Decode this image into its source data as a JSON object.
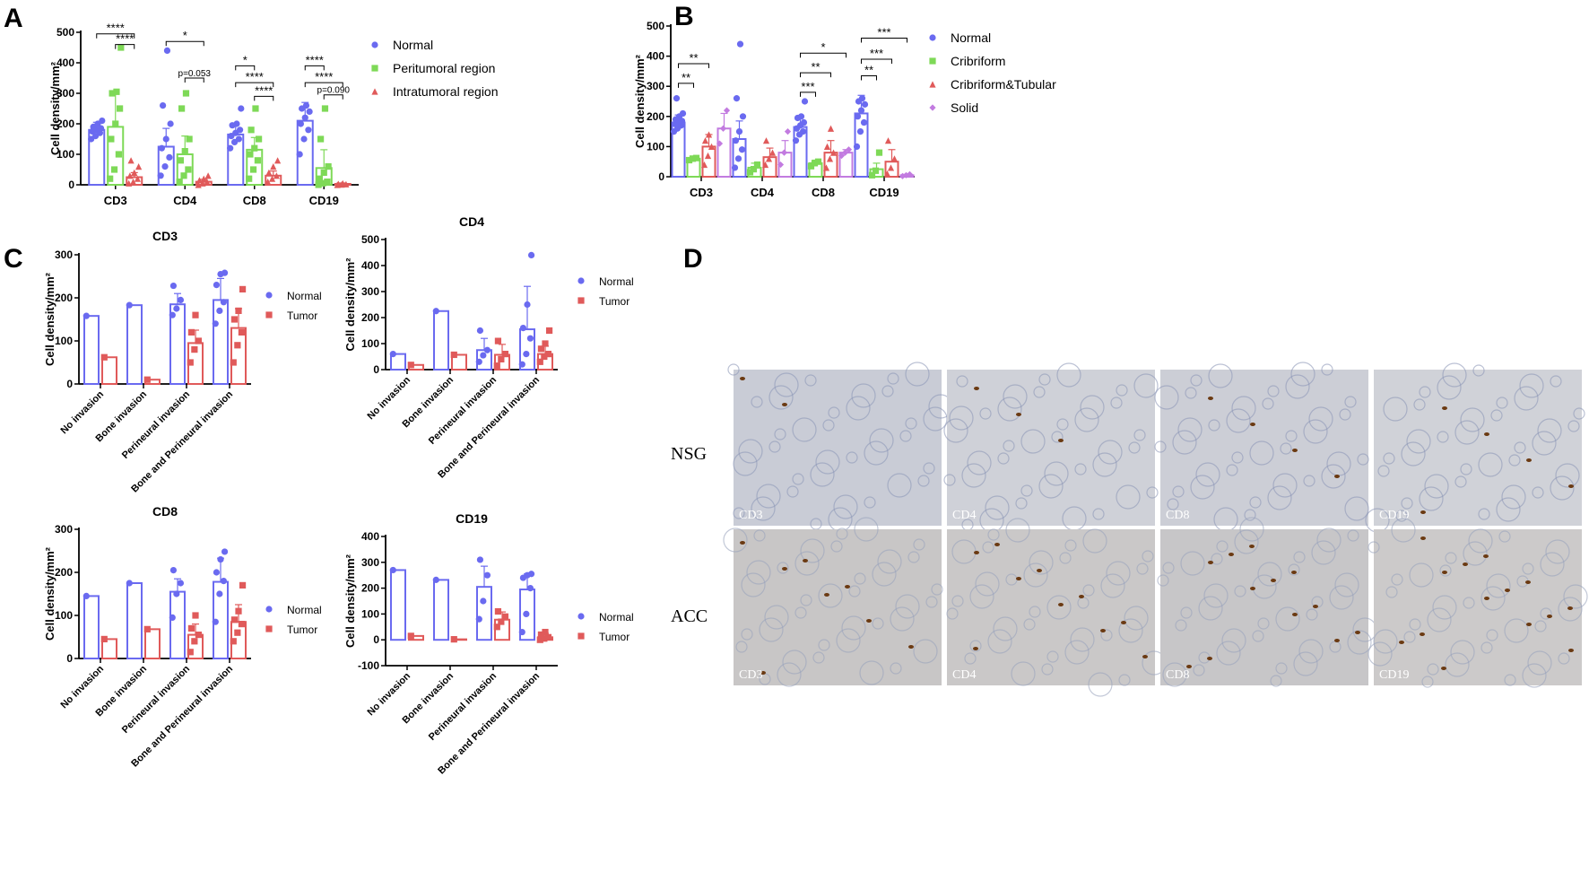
{
  "figure": {
    "panel_letters": {
      "A": "A",
      "B": "B",
      "C": "C",
      "D": "D"
    },
    "colors": {
      "Normal": "#6a6af0",
      "Tumor": "#e05a5a",
      "Peritumoral": "#7ed957",
      "Intratumoral": "#e05a5a",
      "Cribriform": "#7ed957",
      "CribriformTubular": "#e05a5a",
      "Solid": "#c27be0"
    },
    "panel_D": {
      "row_labels": [
        "NSG",
        "ACC"
      ],
      "tile_labels": [
        "CD3",
        "CD4",
        "CD8",
        "CD19"
      ],
      "image_bg": [
        "#c9ccd6",
        "#cfd1d8",
        "#ccced6",
        "#d0d2d8"
      ],
      "image_bg_acc": [
        "#c8c6c6",
        "#cac8c8",
        "#c7c6c8",
        "#cccaca"
      ]
    }
  },
  "chart_data": [
    {
      "id": "A",
      "type": "bar",
      "title": "",
      "ylabel": "Cell density/mm²",
      "ylim": [
        0,
        500
      ],
      "yticks": [
        0,
        100,
        200,
        300,
        400,
        500
      ],
      "categories": [
        "CD3",
        "CD4",
        "CD8",
        "CD19"
      ],
      "legend_position": "right",
      "series": [
        {
          "name": "Normal",
          "color": "#6a6af0",
          "marker": "circle",
          "values": [
            180,
            125,
            165,
            210
          ],
          "errors": [
            25,
            60,
            30,
            60
          ],
          "points": [
            [
              150,
              160,
              170,
              175,
              180,
              185,
              190,
              200,
              210
            ],
            [
              30,
              60,
              90,
              120,
              150,
              200,
              260,
              440
            ],
            [
              120,
              140,
              150,
              160,
              170,
              180,
              195,
              200,
              250
            ],
            [
              100,
              150,
              180,
              200,
              220,
              240,
              250,
              260
            ]
          ]
        },
        {
          "name": "Peritumoral region",
          "color": "#7ed957",
          "marker": "square",
          "values": [
            190,
            100,
            115,
            55
          ],
          "errors": [
            110,
            60,
            40,
            60
          ],
          "points": [
            [
              20,
              50,
              100,
              150,
              200,
              250,
              300,
              305,
              450
            ],
            [
              10,
              30,
              50,
              80,
              110,
              150,
              250,
              300
            ],
            [
              20,
              50,
              80,
              100,
              120,
              150,
              180,
              250
            ],
            [
              0,
              5,
              10,
              20,
              40,
              60,
              150,
              250
            ]
          ]
        },
        {
          "name": "Intratumoral region",
          "color": "#e05a5a",
          "marker": "triangle",
          "values": [
            25,
            10,
            30,
            3
          ],
          "errors": [
            15,
            8,
            15,
            3
          ],
          "points": [
            [
              5,
              10,
              20,
              30,
              40,
              60,
              80
            ],
            [
              0,
              5,
              10,
              15,
              20,
              30
            ],
            [
              10,
              20,
              30,
              40,
              60,
              80
            ],
            [
              0,
              1,
              2,
              3,
              5
            ]
          ]
        }
      ],
      "significance": [
        {
          "cat": 0,
          "from": 0,
          "to": 2,
          "y": 495,
          "label": "****"
        },
        {
          "cat": 0,
          "from": 1,
          "to": 2,
          "y": 460,
          "label": "****"
        },
        {
          "cat": 1,
          "from": 0,
          "to": 2,
          "y": 470,
          "label": "*"
        },
        {
          "cat": 1,
          "from": 1,
          "to": 2,
          "y": 350,
          "label": "p=0.053"
        },
        {
          "cat": 2,
          "from": 0,
          "to": 1,
          "y": 390,
          "label": "*"
        },
        {
          "cat": 2,
          "from": 0,
          "to": 2,
          "y": 335,
          "label": "****"
        },
        {
          "cat": 2,
          "from": 1,
          "to": 2,
          "y": 290,
          "label": "****"
        },
        {
          "cat": 3,
          "from": 0,
          "to": 1,
          "y": 390,
          "label": "****"
        },
        {
          "cat": 3,
          "from": 0,
          "to": 2,
          "y": 335,
          "label": "****"
        },
        {
          "cat": 3,
          "from": 1,
          "to": 2,
          "y": 295,
          "label": "p=0.090"
        }
      ]
    },
    {
      "id": "B",
      "type": "bar",
      "title": "",
      "ylabel": "Cell density/mm²",
      "ylim": [
        0,
        500
      ],
      "yticks": [
        0,
        100,
        200,
        300,
        400,
        500
      ],
      "categories": [
        "CD3",
        "CD4",
        "CD8",
        "CD19"
      ],
      "legend_position": "right",
      "series": [
        {
          "name": "Normal",
          "color": "#6a6af0",
          "marker": "circle",
          "values": [
            180,
            125,
            165,
            210
          ],
          "errors": [
            25,
            60,
            30,
            60
          ],
          "points": [
            [
              150,
              160,
              170,
              175,
              180,
              185,
              190,
              200,
              210,
              260
            ],
            [
              30,
              60,
              90,
              120,
              150,
              200,
              260,
              440
            ],
            [
              120,
              140,
              150,
              160,
              170,
              180,
              195,
              200,
              250
            ],
            [
              100,
              150,
              180,
              200,
              220,
              240,
              250,
              260
            ]
          ]
        },
        {
          "name": "Cribriform",
          "color": "#7ed957",
          "marker": "square",
          "values": [
            60,
            30,
            45,
            25
          ],
          "errors": [
            5,
            15,
            10,
            20
          ],
          "points": [
            [
              55,
              60,
              62
            ],
            [
              15,
              25,
              40
            ],
            [
              35,
              45,
              50
            ],
            [
              5,
              20,
              80
            ]
          ]
        },
        {
          "name": "Cribriform&Tubular",
          "color": "#e05a5a",
          "marker": "triangle",
          "values": [
            100,
            65,
            80,
            50
          ],
          "errors": [
            40,
            30,
            40,
            40
          ],
          "points": [
            [
              40,
              70,
              100,
              120,
              140
            ],
            [
              40,
              60,
              80,
              120
            ],
            [
              30,
              60,
              80,
              100,
              160
            ],
            [
              10,
              30,
              60,
              120
            ]
          ]
        },
        {
          "name": "Solid",
          "color": "#c27be0",
          "marker": "diamond",
          "values": [
            160,
            80,
            80,
            5
          ],
          "errors": [
            50,
            40,
            10,
            3
          ],
          "points": [
            [
              110,
              160,
              220
            ],
            [
              40,
              80,
              150
            ],
            [
              70,
              80,
              90
            ],
            [
              2,
              5,
              8
            ]
          ]
        }
      ],
      "significance": [
        {
          "cat": 0,
          "from": 0,
          "to": 1,
          "y": 310,
          "label": "**"
        },
        {
          "cat": 0,
          "from": 0,
          "to": 2,
          "y": 375,
          "label": "**"
        },
        {
          "cat": 2,
          "from": 0,
          "to": 3,
          "y": 410,
          "label": "*"
        },
        {
          "cat": 2,
          "from": 0,
          "to": 2,
          "y": 345,
          "label": "**"
        },
        {
          "cat": 2,
          "from": 0,
          "to": 1,
          "y": 280,
          "label": "***"
        },
        {
          "cat": 3,
          "from": 0,
          "to": 3,
          "y": 460,
          "label": "***"
        },
        {
          "cat": 3,
          "from": 0,
          "to": 2,
          "y": 390,
          "label": "***"
        },
        {
          "cat": 3,
          "from": 0,
          "to": 1,
          "y": 335,
          "label": "**"
        }
      ]
    },
    {
      "id": "C1",
      "type": "bar",
      "title": "CD3",
      "ylabel": "Cell density/mm²",
      "ylim": [
        0,
        300
      ],
      "yticks": [
        0,
        100,
        200,
        300
      ],
      "categories": [
        "No invasion",
        "Bone invasion",
        "Perineural invasion",
        "Bone and Perineural invasion"
      ],
      "legend_position": "right",
      "series": [
        {
          "name": "Normal",
          "color": "#6a6af0",
          "marker": "circle",
          "values": [
            158,
            183,
            185,
            195
          ],
          "errors": [
            0,
            0,
            25,
            50
          ],
          "points": [
            [
              158
            ],
            [
              183
            ],
            [
              160,
              175,
              195,
              228
            ],
            [
              140,
              170,
              190,
              230,
              255,
              258
            ]
          ]
        },
        {
          "name": "Tumor",
          "color": "#e05a5a",
          "marker": "square",
          "values": [
            62,
            10,
            95,
            130
          ],
          "errors": [
            0,
            0,
            30,
            45
          ],
          "points": [
            [
              62
            ],
            [
              10
            ],
            [
              50,
              80,
              100,
              120,
              160
            ],
            [
              50,
              90,
              120,
              150,
              170,
              220
            ]
          ]
        }
      ]
    },
    {
      "id": "C2",
      "type": "bar",
      "title": "CD4",
      "ylabel": "Cell density/mm²",
      "ylim": [
        0,
        500
      ],
      "yticks": [
        0,
        100,
        200,
        300,
        400,
        500
      ],
      "categories": [
        "No invasion",
        "Bone invasion",
        "Perineural invasion",
        "Bone and Perineural invasion"
      ],
      "legend_position": "right",
      "series": [
        {
          "name": "Normal",
          "color": "#6a6af0",
          "marker": "circle",
          "values": [
            60,
            225,
            75,
            155
          ],
          "errors": [
            0,
            0,
            45,
            165
          ],
          "points": [
            [
              60
            ],
            [
              225
            ],
            [
              30,
              55,
              75,
              150
            ],
            [
              20,
              60,
              120,
              160,
              250,
              440
            ]
          ]
        },
        {
          "name": "Tumor",
          "color": "#e05a5a",
          "marker": "square",
          "values": [
            18,
            57,
            57,
            60
          ],
          "errors": [
            0,
            0,
            40,
            30
          ],
          "points": [
            [
              18
            ],
            [
              57
            ],
            [
              15,
              40,
              60,
              110
            ],
            [
              30,
              50,
              60,
              80,
              100,
              150
            ]
          ]
        }
      ]
    },
    {
      "id": "C3",
      "type": "bar",
      "title": "CD8",
      "ylabel": "Cell density/mm²",
      "ylim": [
        0,
        300
      ],
      "yticks": [
        0,
        100,
        200,
        300
      ],
      "categories": [
        "No invasion",
        "Bone invasion",
        "Perineural invasion",
        "Bone and Perineural invasion"
      ],
      "legend_position": "right",
      "series": [
        {
          "name": "Normal",
          "color": "#6a6af0",
          "marker": "circle",
          "values": [
            145,
            175,
            155,
            178
          ],
          "errors": [
            0,
            0,
            30,
            55
          ],
          "points": [
            [
              145
            ],
            [
              175
            ],
            [
              95,
              150,
              175,
              205
            ],
            [
              85,
              150,
              180,
              200,
              230,
              248
            ]
          ]
        },
        {
          "name": "Tumor",
          "color": "#e05a5a",
          "marker": "square",
          "values": [
            45,
            68,
            55,
            85
          ],
          "errors": [
            0,
            0,
            25,
            40
          ],
          "points": [
            [
              45
            ],
            [
              68
            ],
            [
              15,
              40,
              55,
              70,
              100
            ],
            [
              40,
              60,
              80,
              90,
              110,
              170
            ]
          ]
        }
      ]
    },
    {
      "id": "C4",
      "type": "bar",
      "title": "CD19",
      "ylabel": "Cell density/mm²",
      "ylim": [
        -100,
        400
      ],
      "yticks": [
        -100,
        0,
        100,
        200,
        300,
        400
      ],
      "categories": [
        "No invasion",
        "Bone invasion",
        "Perineural invasion",
        "Bone and Perineural invasion"
      ],
      "legend_position": "right",
      "series": [
        {
          "name": "Normal",
          "color": "#6a6af0",
          "marker": "circle",
          "values": [
            270,
            232,
            205,
            195
          ],
          "errors": [
            0,
            0,
            80,
            60
          ],
          "points": [
            [
              270
            ],
            [
              232
            ],
            [
              80,
              150,
              250,
              310
            ],
            [
              30,
              100,
              200,
              240,
              250,
              255
            ]
          ]
        },
        {
          "name": "Tumor",
          "color": "#e05a5a",
          "marker": "square",
          "values": [
            15,
            2,
            78,
            10
          ],
          "errors": [
            0,
            0,
            30,
            15
          ],
          "points": [
            [
              15
            ],
            [
              2
            ],
            [
              50,
              70,
              90,
              110
            ],
            [
              0,
              5,
              10,
              20,
              30
            ]
          ]
        }
      ]
    }
  ]
}
